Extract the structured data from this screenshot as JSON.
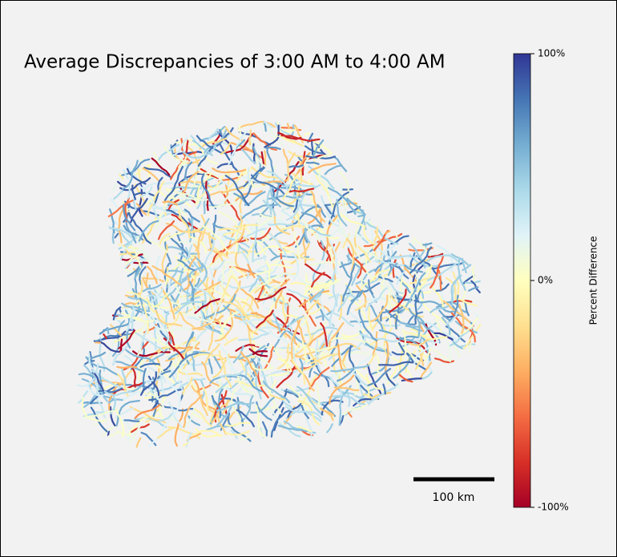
{
  "title": "Average Discrepancies of 3:00 AM to 4:00 AM",
  "colorbar": {
    "label": "Percent Difference",
    "lim": [
      -100,
      100
    ],
    "ticks": [
      {
        "value": 100,
        "label": "100%"
      },
      {
        "value": 0,
        "label": "0%"
      },
      {
        "value": -100,
        "label": "-100%"
      }
    ],
    "colors": [
      "#a50026",
      "#d73027",
      "#f46d43",
      "#fdae61",
      "#fee090",
      "#ffffbf",
      "#e0f3f8",
      "#abd9e9",
      "#74add1",
      "#4575b4",
      "#313695"
    ]
  },
  "scale_bar": {
    "label": "100 km"
  }
}
